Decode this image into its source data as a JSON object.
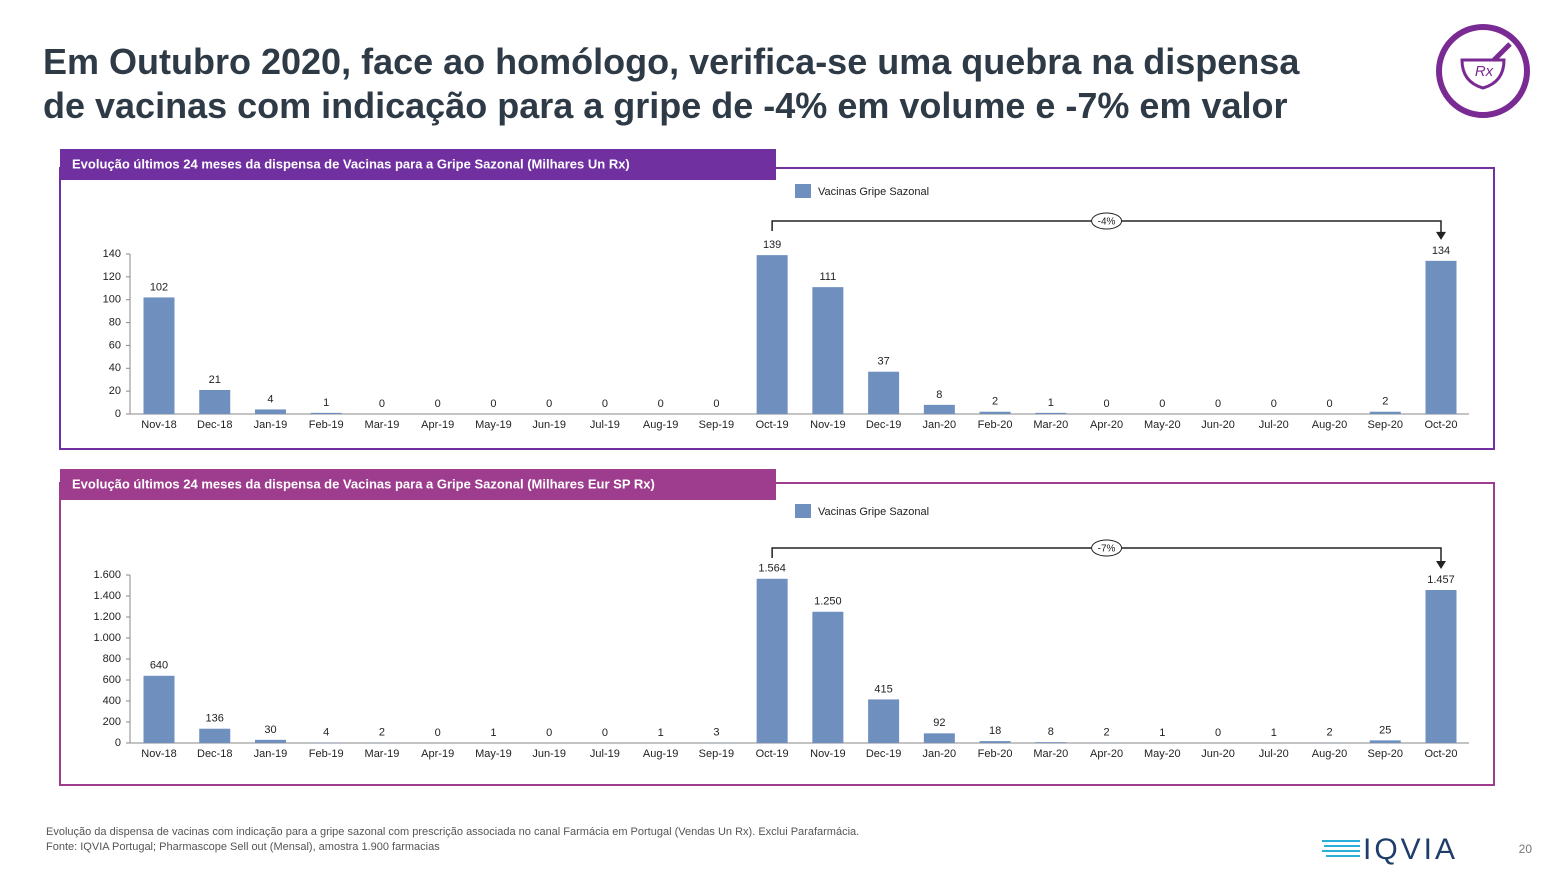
{
  "title_lines": [
    "Em Outubro 2020, face ao homólogo, verifica-se uma quebra na dispensa",
    "de vacinas com indicação para a gripe de -4% em volume e -7% em valor"
  ],
  "icon_label": "Rx",
  "footnotes": [
    "Evolução da dispensa de vacinas com indicação para a gripe sazonal com prescrição associada no canal Farmácia em Portugal (Vendas Un Rx). Exclui Parafarmácia.",
    "Fonte: IQVIA Portugal; Pharmascope Sell out (Mensal), amostra 1.900 farmacias"
  ],
  "logo": "IQVIA",
  "page_number": "20",
  "chart_data": [
    {
      "type": "bar",
      "title": "Evolução últimos 24 meses da dispensa de Vacinas para a Gripe Sazonal (Milhares Un Rx)",
      "header_color": "#7030a0",
      "categories": [
        "Nov-18",
        "Dec-18",
        "Jan-19",
        "Feb-19",
        "Mar-19",
        "Apr-19",
        "May-19",
        "Jun-19",
        "Jul-19",
        "Aug-19",
        "Sep-19",
        "Oct-19",
        "Nov-19",
        "Dec-19",
        "Jan-20",
        "Feb-20",
        "Mar-20",
        "Apr-20",
        "May-20",
        "Jun-20",
        "Jul-20",
        "Aug-20",
        "Sep-20",
        "Oct-20"
      ],
      "series": [
        {
          "name": "Vacinas Gripe Sazonal",
          "color": "#6f8fbf",
          "values": [
            102,
            21,
            4,
            1,
            0,
            0,
            0,
            0,
            0,
            0,
            0,
            139,
            111,
            37,
            8,
            2,
            1,
            0,
            0,
            0,
            0,
            0,
            2,
            134
          ]
        }
      ],
      "ylim": [
        0,
        140
      ],
      "yticks": [
        0,
        20,
        40,
        60,
        80,
        100,
        120,
        140
      ],
      "annotation": {
        "text": "-4%",
        "from": "Oct-19",
        "to": "Oct-20"
      }
    },
    {
      "type": "bar",
      "title": "Evolução últimos 24 meses da dispensa de Vacinas para a Gripe Sazonal (Milhares Eur SP Rx)",
      "header_color": "#9e3d8e",
      "categories": [
        "Nov-18",
        "Dec-18",
        "Jan-19",
        "Feb-19",
        "Mar-19",
        "Apr-19",
        "May-19",
        "Jun-19",
        "Jul-19",
        "Aug-19",
        "Sep-19",
        "Oct-19",
        "Nov-19",
        "Dec-19",
        "Jan-20",
        "Feb-20",
        "Mar-20",
        "Apr-20",
        "May-20",
        "Jun-20",
        "Jul-20",
        "Aug-20",
        "Sep-20",
        "Oct-20"
      ],
      "series": [
        {
          "name": "Vacinas Gripe Sazonal",
          "color": "#6f8fbf",
          "values": [
            640,
            136,
            30,
            4,
            2,
            0,
            1,
            0,
            0,
            1,
            3,
            1564,
            1250,
            415,
            92,
            18,
            8,
            2,
            1,
            0,
            1,
            2,
            25,
            1457
          ],
          "value_labels": [
            "640",
            "136",
            "30",
            "4",
            "2",
            "0",
            "1",
            "0",
            "0",
            "1",
            "3",
            "1.564",
            "1.250",
            "415",
            "92",
            "18",
            "8",
            "2",
            "1",
            "0",
            "1",
            "2",
            "25",
            "1.457"
          ]
        }
      ],
      "ylim": [
        0,
        1600
      ],
      "yticks": [
        0,
        200,
        400,
        600,
        800,
        {
          "value": 1000,
          "label": "1.000"
        },
        {
          "value": 1200,
          "label": "1.200"
        },
        {
          "value": 1400,
          "label": "1.400"
        },
        {
          "value": 1600,
          "label": "1.600"
        }
      ],
      "annotation": {
        "text": "-7%",
        "from": "Oct-19",
        "to": "Oct-20"
      }
    }
  ]
}
